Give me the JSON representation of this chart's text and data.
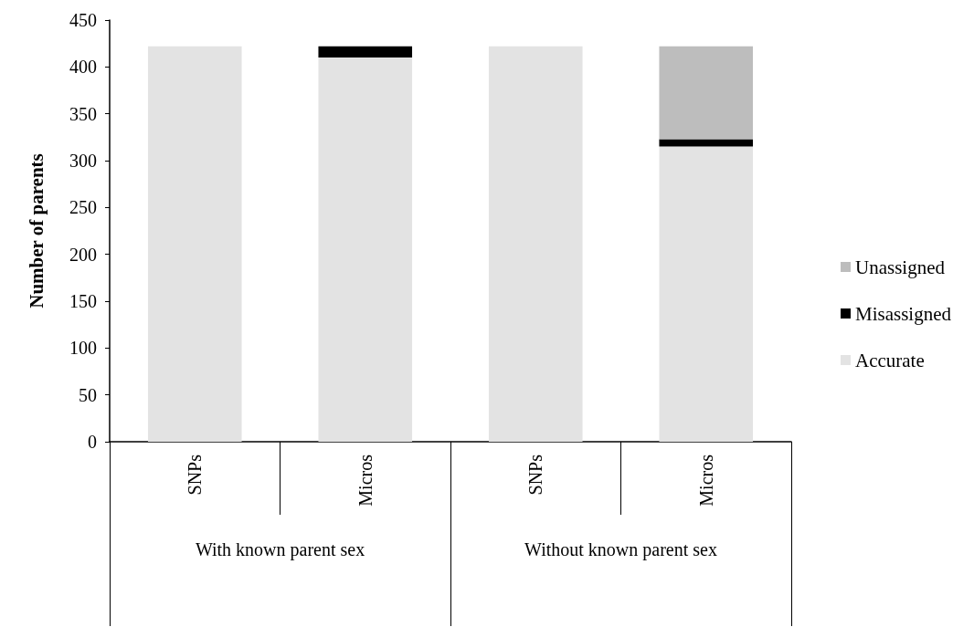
{
  "chart_data": {
    "type": "bar",
    "stacked": true,
    "ylabel": "Number of parents",
    "categories": [
      "SNPs",
      "Micros",
      "SNPs",
      "Micros"
    ],
    "series": [
      {
        "name": "Accurate",
        "color": "#e3e3e3",
        "values": [
          422,
          410,
          422,
          315
        ]
      },
      {
        "name": "Misassigned",
        "color": "#000000",
        "values": [
          0,
          12,
          0,
          8
        ]
      },
      {
        "name": "Unassigned",
        "color": "#bdbdbd",
        "values": [
          0,
          0,
          0,
          99
        ]
      }
    ],
    "annotations": [
      "With known parent sex",
      "Without known parent sex"
    ],
    "ylim": [
      0,
      450
    ],
    "yticks": [
      0,
      50,
      100,
      150,
      200,
      250,
      300,
      350,
      400,
      450
    ],
    "grid": false,
    "legend": "right"
  }
}
